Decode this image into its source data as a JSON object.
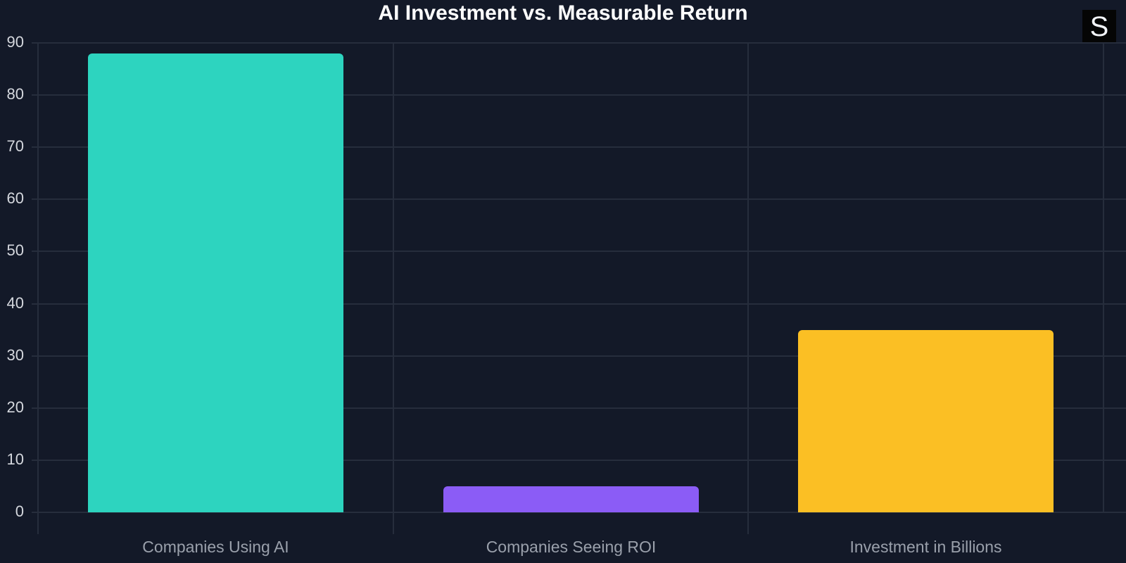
{
  "title": "AI Investment vs. Measurable Return",
  "logo": {
    "text": "S",
    "icon": "brand-logo-icon"
  },
  "colors": {
    "background": "#131928",
    "grid": "#262d3c",
    "teal": "#2dd4bf",
    "purple": "#8b5cf6",
    "yellow": "#fbbf24"
  },
  "y_ticks": [
    "0",
    "10",
    "20",
    "30",
    "40",
    "50",
    "60",
    "70",
    "80",
    "90"
  ],
  "chart_data": {
    "type": "bar",
    "title": "AI Investment vs. Measurable Return",
    "categories": [
      "Companies Using AI",
      "Companies Seeing ROI",
      "Investment in Billions"
    ],
    "values": [
      88,
      5,
      35
    ],
    "colors": [
      "#2dd4bf",
      "#8b5cf6",
      "#fbbf24"
    ],
    "xlabel": "",
    "ylabel": "",
    "ylim": [
      0,
      90
    ],
    "yticks": [
      0,
      10,
      20,
      30,
      40,
      50,
      60,
      70,
      80,
      90
    ],
    "grid": true,
    "legend": "none"
  }
}
